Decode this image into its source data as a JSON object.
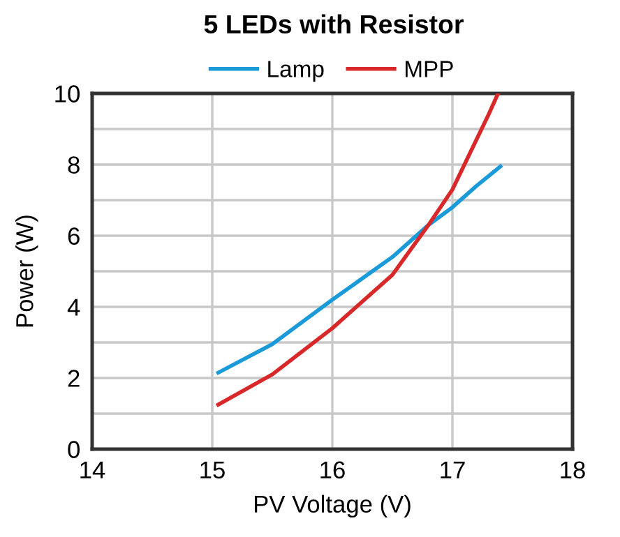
{
  "chart_data": {
    "type": "line",
    "title": "5 LEDs with Resistor",
    "xlabel": "PV Voltage (V)",
    "ylabel": "Power (W)",
    "series": [
      {
        "name": "Lamp",
        "color": "#1a9ad9",
        "x": [
          15.05,
          15.5,
          16,
          16.5,
          16.8,
          17,
          17.2,
          17.4
        ],
        "values": [
          2.15,
          2.95,
          4.2,
          5.4,
          6.3,
          6.8,
          7.4,
          7.95
        ]
      },
      {
        "name": "MPP",
        "color": "#d9282a",
        "x": [
          15.05,
          15.5,
          16,
          16.5,
          16.8,
          17,
          17.2,
          17.3,
          17.38
        ],
        "values": [
          1.25,
          2.1,
          3.4,
          4.9,
          6.3,
          7.3,
          8.7,
          9.4,
          10
        ]
      }
    ],
    "xlim": [
      14,
      18
    ],
    "xticks": [
      14,
      15,
      16,
      17,
      18
    ],
    "ylim": [
      0,
      10
    ],
    "yticks": [
      0,
      {
        "value": 1,
        "label": null
      },
      2,
      {
        "value": 3,
        "label": null
      },
      4,
      {
        "value": 5,
        "label": null
      },
      6,
      {
        "value": 7,
        "label": null
      },
      8,
      {
        "value": 9,
        "label": null
      },
      10
    ],
    "grid": true,
    "legend": "top",
    "marker": "none",
    "line_style": "solid"
  }
}
